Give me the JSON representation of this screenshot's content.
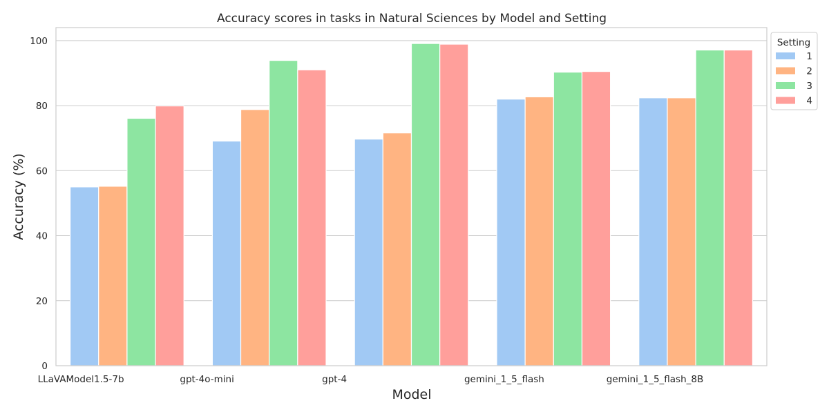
{
  "chart_data": {
    "type": "bar",
    "title": "Accuracy scores in tasks in Natural Sciences by Model and Setting",
    "xlabel": "Model",
    "ylabel": "Accuracy (%)",
    "categories": [
      "LLaVAModel1.5-7b",
      "gpt-4o-mini",
      "gpt-4",
      "gemini_1_5_flash",
      "gemini_1_5_flash_8B"
    ],
    "ylim": [
      0,
      104
    ],
    "yticks": [
      0,
      20,
      40,
      60,
      80,
      100
    ],
    "grid": "horizontal",
    "legend": {
      "title": "Setting",
      "position": "top-right, outside plot"
    },
    "series": [
      {
        "name": "1",
        "color": "#a1c9f4",
        "values": [
          55.0,
          69.1,
          69.7,
          82.0,
          82.4
        ]
      },
      {
        "name": "2",
        "color": "#ffb482",
        "values": [
          55.2,
          78.8,
          71.6,
          82.7,
          82.4
        ]
      },
      {
        "name": "3",
        "color": "#8de5a1",
        "values": [
          76.1,
          93.9,
          99.1,
          90.3,
          97.1
        ]
      },
      {
        "name": "4",
        "color": "#ff9f9b",
        "values": [
          79.9,
          91.0,
          98.9,
          90.5,
          97.1
        ]
      }
    ]
  }
}
